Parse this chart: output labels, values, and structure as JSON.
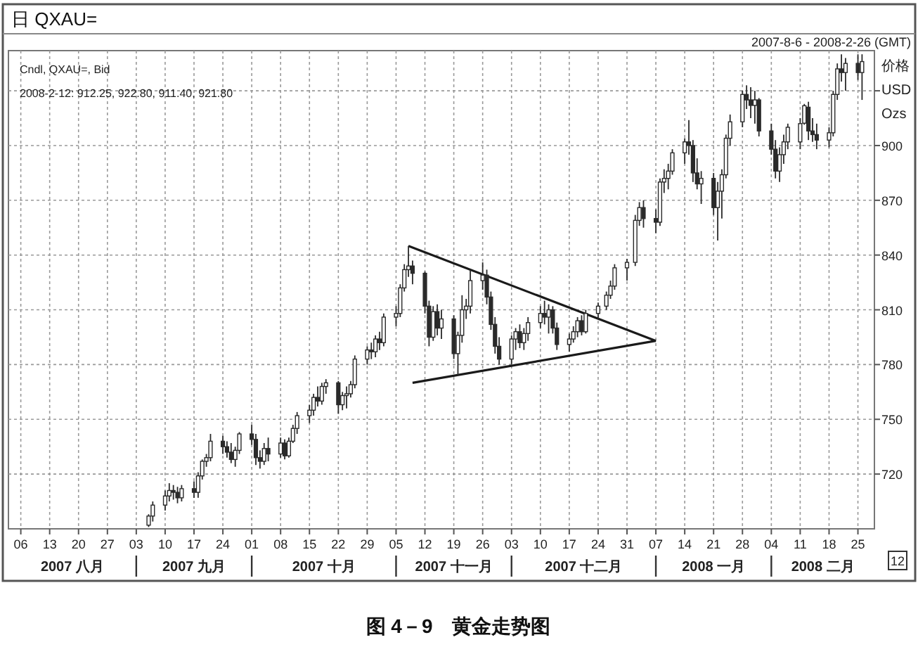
{
  "chart_data": {
    "type": "candlestick",
    "title": "日 QXAU=",
    "subtitle": "2007-8-6 - 2008-2-26 (GMT)",
    "ylabel": "价格 USD Ozs",
    "color": "#2a2a2a",
    "grid": true,
    "annotations": [
      "Cndl, QXAU=, Bid",
      "2008-2-12: 912.25, 922.80, 911.40, 921.80",
      "12",
      "图 4－9　黄金走势图",
      "2007 八月",
      "2007 九月",
      "2007 十月",
      "2007 十一月",
      "2007 十二月",
      "2008 一月",
      "2008 二月"
    ],
    "xlim": [
      "2007-08-03",
      "2008-02-29"
    ],
    "ylim": [
      690,
      952
    ],
    "xticks": [
      {
        "value": "2007-08-06",
        "label": "06"
      },
      {
        "value": "2007-08-13",
        "label": "13"
      },
      {
        "value": "2007-08-20",
        "label": "20"
      },
      {
        "value": "2007-08-27",
        "label": "27"
      },
      {
        "value": "2007-09-03",
        "label": "03"
      },
      {
        "value": "2007-09-10",
        "label": "10"
      },
      {
        "value": "2007-09-17",
        "label": "17"
      },
      {
        "value": "2007-09-24",
        "label": "24"
      },
      {
        "value": "2007-10-01",
        "label": "01"
      },
      {
        "value": "2007-10-08",
        "label": "08"
      },
      {
        "value": "2007-10-15",
        "label": "15"
      },
      {
        "value": "2007-10-22",
        "label": "22"
      },
      {
        "value": "2007-10-29",
        "label": "29"
      },
      {
        "value": "2007-11-05",
        "label": "05"
      },
      {
        "value": "2007-11-12",
        "label": "12"
      },
      {
        "value": "2007-11-19",
        "label": "19"
      },
      {
        "value": "2007-11-26",
        "label": "26"
      },
      {
        "value": "2007-12-03",
        "label": "03"
      },
      {
        "value": "2007-12-10",
        "label": "10"
      },
      {
        "value": "2007-12-17",
        "label": "17"
      },
      {
        "value": "2007-12-24",
        "label": "24"
      },
      {
        "value": "2007-12-31",
        "label": "31"
      },
      {
        "value": "2008-01-07",
        "label": "07"
      },
      {
        "value": "2008-01-14",
        "label": "14"
      },
      {
        "value": "2008-01-21",
        "label": "21"
      },
      {
        "value": "2008-01-28",
        "label": "28"
      },
      {
        "value": "2008-02-04",
        "label": "04"
      },
      {
        "value": "2008-02-11",
        "label": "11"
      },
      {
        "value": "2008-02-18",
        "label": "18"
      },
      {
        "value": "2008-02-25",
        "label": "25"
      }
    ],
    "yticks": [
      720,
      750,
      780,
      810,
      840,
      870,
      900,
      {
        "value": 930,
        "label": null
      }
    ],
    "x": [
      "2007-09-06",
      "2007-09-07",
      "2007-09-10",
      "2007-09-11",
      "2007-09-12",
      "2007-09-13",
      "2007-09-14",
      "2007-09-17",
      "2007-09-18",
      "2007-09-19",
      "2007-09-20",
      "2007-09-21",
      "2007-09-24",
      "2007-09-25",
      "2007-09-26",
      "2007-09-27",
      "2007-09-28",
      "2007-10-01",
      "2007-10-02",
      "2007-10-03",
      "2007-10-04",
      "2007-10-05",
      "2007-10-08",
      "2007-10-09",
      "2007-10-10",
      "2007-10-11",
      "2007-10-12",
      "2007-10-15",
      "2007-10-16",
      "2007-10-17",
      "2007-10-18",
      "2007-10-19",
      "2007-10-22",
      "2007-10-23",
      "2007-10-24",
      "2007-10-25",
      "2007-10-26",
      "2007-10-29",
      "2007-10-30",
      "2007-10-31",
      "2007-11-01",
      "2007-11-02",
      "2007-11-05",
      "2007-11-06",
      "2007-11-07",
      "2007-11-08",
      "2007-11-09",
      "2007-11-12",
      "2007-11-13",
      "2007-11-14",
      "2007-11-15",
      "2007-11-16",
      "2007-11-19",
      "2007-11-20",
      "2007-11-21",
      "2007-11-22",
      "2007-11-23",
      "2007-11-26",
      "2007-11-27",
      "2007-11-28",
      "2007-11-29",
      "2007-11-30",
      "2007-12-03",
      "2007-12-04",
      "2007-12-05",
      "2007-12-06",
      "2007-12-07",
      "2007-12-10",
      "2007-12-11",
      "2007-12-12",
      "2007-12-13",
      "2007-12-14",
      "2007-12-17",
      "2007-12-18",
      "2007-12-19",
      "2007-12-20",
      "2007-12-21",
      "2007-12-24",
      "2007-12-26",
      "2007-12-27",
      "2007-12-28",
      "2007-12-31",
      "2008-01-02",
      "2008-01-03",
      "2008-01-04",
      "2008-01-07",
      "2008-01-08",
      "2008-01-09",
      "2008-01-10",
      "2008-01-11",
      "2008-01-14",
      "2008-01-15",
      "2008-01-16",
      "2008-01-17",
      "2008-01-18",
      "2008-01-21",
      "2008-01-22",
      "2008-01-23",
      "2008-01-24",
      "2008-01-25",
      "2008-01-28",
      "2008-01-29",
      "2008-01-30",
      "2008-01-31",
      "2008-02-01",
      "2008-02-04",
      "2008-02-05",
      "2008-02-06",
      "2008-02-07",
      "2008-02-08",
      "2008-02-11",
      "2008-02-12",
      "2008-02-13",
      "2008-02-14",
      "2008-02-15",
      "2008-02-18",
      "2008-02-19",
      "2008-02-20",
      "2008-02-21",
      "2008-02-22",
      "2008-02-25",
      "2008-02-26"
    ],
    "ohlc": [
      [
        692,
        698,
        691,
        697
      ],
      [
        697,
        705,
        694,
        703
      ],
      [
        703,
        711,
        700,
        708
      ],
      [
        708,
        715,
        705,
        711
      ],
      [
        711,
        714,
        706,
        710
      ],
      [
        710,
        713,
        704,
        707
      ],
      [
        707,
        714,
        705,
        712
      ],
      [
        712,
        716,
        707,
        710
      ],
      [
        710,
        721,
        707,
        719
      ],
      [
        719,
        728,
        717,
        727
      ],
      [
        727,
        731,
        724,
        729
      ],
      [
        729,
        742,
        727,
        738
      ],
      [
        738,
        741,
        731,
        735
      ],
      [
        735,
        738,
        729,
        732
      ],
      [
        732,
        737,
        726,
        728
      ],
      [
        728,
        735,
        724,
        733
      ],
      [
        733,
        743,
        731,
        742
      ],
      [
        742,
        747,
        736,
        739
      ],
      [
        739,
        742,
        725,
        729
      ],
      [
        729,
        733,
        723,
        727
      ],
      [
        727,
        737,
        725,
        734
      ],
      [
        734,
        740,
        727,
        731
      ],
      [
        731,
        740,
        729,
        737
      ],
      [
        737,
        739,
        728,
        730
      ],
      [
        730,
        740,
        729,
        738
      ],
      [
        738,
        747,
        737,
        745
      ],
      [
        745,
        754,
        742,
        752
      ],
      [
        752,
        758,
        748,
        755
      ],
      [
        755,
        764,
        752,
        762
      ],
      [
        762,
        768,
        757,
        760
      ],
      [
        760,
        770,
        758,
        768
      ],
      [
        768,
        772,
        764,
        770
      ],
      [
        770,
        771,
        753,
        758
      ],
      [
        758,
        765,
        755,
        763
      ],
      [
        763,
        768,
        756,
        764
      ],
      [
        764,
        771,
        762,
        769
      ],
      [
        769,
        785,
        767,
        783
      ],
      [
        783,
        790,
        780,
        788
      ],
      [
        788,
        792,
        783,
        787
      ],
      [
        787,
        796,
        784,
        794
      ],
      [
        794,
        798,
        788,
        792
      ],
      [
        792,
        808,
        790,
        806
      ],
      [
        806,
        812,
        801,
        808
      ],
      [
        808,
        824,
        806,
        822
      ],
      [
        822,
        835,
        820,
        832
      ],
      [
        832,
        845,
        828,
        834
      ],
      [
        834,
        837,
        824,
        830
      ],
      [
        830,
        831,
        808,
        812
      ],
      [
        812,
        815,
        790,
        795
      ],
      [
        795,
        812,
        793,
        809
      ],
      [
        809,
        813,
        796,
        800
      ],
      [
        800,
        810,
        794,
        805
      ],
      [
        805,
        807,
        783,
        786
      ],
      [
        786,
        798,
        774,
        796
      ],
      [
        796,
        818,
        792,
        810
      ],
      [
        810,
        816,
        805,
        812
      ],
      [
        812,
        832,
        808,
        826
      ],
      [
        826,
        836,
        821,
        829
      ],
      [
        829,
        832,
        813,
        817
      ],
      [
        817,
        820,
        799,
        802
      ],
      [
        802,
        806,
        786,
        790
      ],
      [
        790,
        795,
        780,
        783
      ],
      [
        783,
        796,
        780,
        794
      ],
      [
        794,
        800,
        788,
        798
      ],
      [
        798,
        802,
        789,
        792
      ],
      [
        792,
        800,
        788,
        797
      ],
      [
        797,
        806,
        793,
        803
      ],
      [
        803,
        812,
        800,
        808
      ],
      [
        808,
        815,
        802,
        806
      ],
      [
        806,
        813,
        797,
        810
      ],
      [
        810,
        812,
        797,
        800
      ],
      [
        800,
        803,
        788,
        791
      ],
      [
        791,
        797,
        787,
        794
      ],
      [
        794,
        801,
        792,
        798
      ],
      [
        798,
        806,
        795,
        804
      ],
      [
        804,
        807,
        796,
        798
      ],
      [
        798,
        810,
        797,
        808
      ],
      [
        808,
        814,
        805,
        812
      ],
      [
        812,
        820,
        810,
        818
      ],
      [
        818,
        826,
        816,
        823
      ],
      [
        823,
        835,
        821,
        833
      ],
      [
        833,
        838,
        826,
        836
      ],
      [
        836,
        862,
        834,
        859
      ],
      [
        859,
        869,
        856,
        866
      ],
      [
        866,
        870,
        855,
        860
      ],
      [
        860,
        865,
        852,
        858
      ],
      [
        858,
        882,
        856,
        880
      ],
      [
        880,
        887,
        874,
        882
      ],
      [
        882,
        890,
        876,
        886
      ],
      [
        886,
        898,
        884,
        896
      ],
      [
        896,
        904,
        890,
        902
      ],
      [
        902,
        914,
        895,
        900
      ],
      [
        900,
        903,
        880,
        885
      ],
      [
        885,
        893,
        876,
        879
      ],
      [
        879,
        886,
        868,
        882
      ],
      [
        882,
        885,
        862,
        866
      ],
      [
        866,
        880,
        848,
        875
      ],
      [
        875,
        887,
        860,
        884
      ],
      [
        884,
        906,
        882,
        904
      ],
      [
        904,
        917,
        900,
        913
      ],
      [
        913,
        930,
        910,
        928
      ],
      [
        928,
        933,
        920,
        925
      ],
      [
        925,
        932,
        915,
        922
      ],
      [
        922,
        930,
        912,
        925
      ],
      [
        925,
        926,
        905,
        908
      ],
      [
        908,
        912,
        895,
        898
      ],
      [
        898,
        903,
        882,
        886
      ],
      [
        886,
        899,
        880,
        895
      ],
      [
        895,
        906,
        890,
        902
      ],
      [
        902,
        912,
        898,
        910
      ],
      [
        902,
        915,
        898,
        912
      ],
      [
        912.25,
        922.8,
        911.4,
        921.8
      ],
      [
        921,
        924,
        903,
        908
      ],
      [
        908,
        915,
        902,
        906
      ],
      [
        906,
        912,
        898,
        903
      ],
      [
        903,
        910,
        899,
        907
      ],
      [
        907,
        930,
        905,
        928
      ],
      [
        928,
        945,
        925,
        942
      ],
      [
        942,
        950,
        935,
        940
      ],
      [
        940,
        948,
        930,
        945
      ],
      [
        945,
        950,
        936,
        940
      ],
      [
        940,
        950,
        925,
        946
      ]
    ],
    "series": [
      {
        "type": "line",
        "color": "#1a1a1a",
        "x": [
          "2007-11-08",
          "2008-01-07"
        ],
        "values": [
          845,
          793
        ]
      },
      {
        "type": "line",
        "color": "#1a1a1a",
        "x": [
          "2007-11-09",
          "2008-01-07"
        ],
        "values": [
          770,
          793
        ]
      }
    ]
  }
}
